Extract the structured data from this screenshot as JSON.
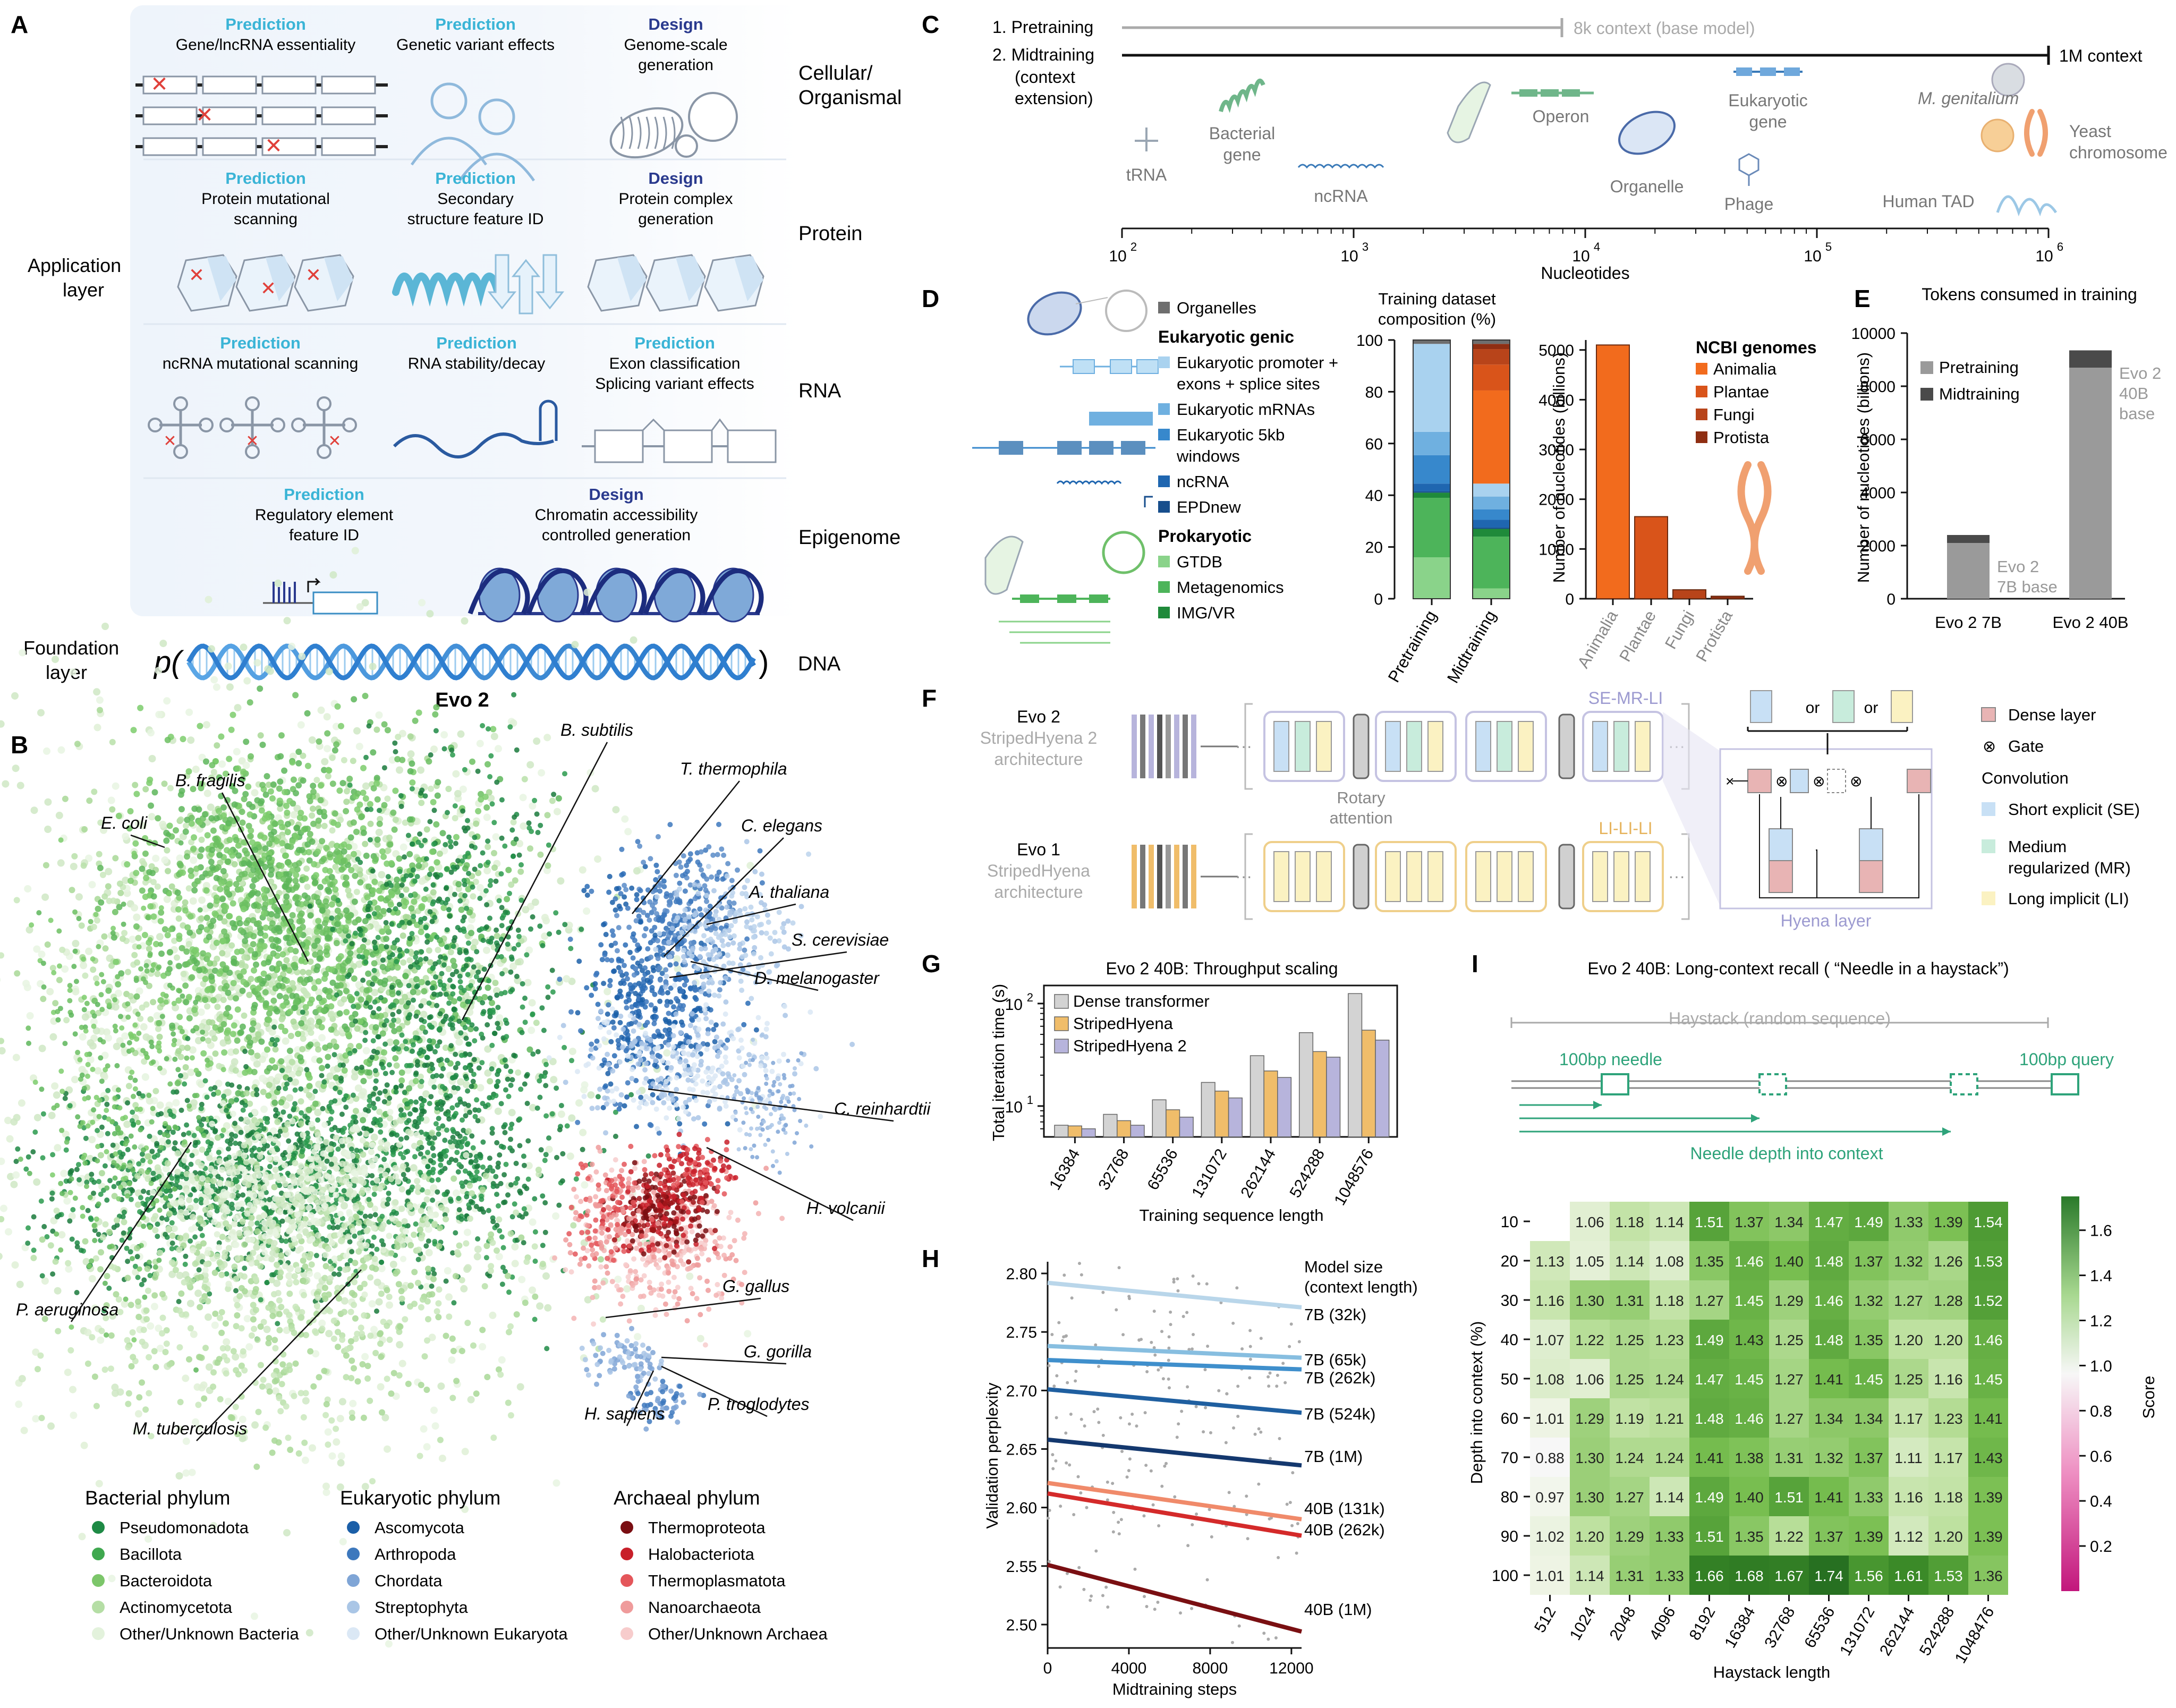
{
  "panelA": {
    "letter": "A",
    "sections": [
      {
        "label": "Cellular/ Organismal",
        "label_lines": [
          "Cellular/",
          "Organismal"
        ],
        "items": [
          {
            "kind": "Prediction",
            "lines": [
              "Gene/lncRNA essentiality"
            ]
          },
          {
            "kind": "Prediction",
            "lines": [
              "Genetic variant effects"
            ]
          },
          {
            "kind": "Design",
            "lines": [
              "Genome-scale",
              "generation"
            ]
          }
        ]
      },
      {
        "label": "Protein",
        "label_lines": [
          "Protein"
        ],
        "items": [
          {
            "kind": "Prediction",
            "lines": [
              "Protein mutational",
              "scanning"
            ]
          },
          {
            "kind": "Prediction",
            "lines": [
              "Secondary",
              "structure feature ID"
            ]
          },
          {
            "kind": "Design",
            "lines": [
              "Protein complex",
              "generation"
            ]
          }
        ]
      },
      {
        "label": "RNA",
        "label_lines": [
          "RNA"
        ],
        "items": [
          {
            "kind": "Prediction",
            "lines": [
              "ncRNA mutational scanning"
            ]
          },
          {
            "kind": "Prediction",
            "lines": [
              "RNA stability/decay"
            ]
          },
          {
            "kind": "Prediction",
            "lines": [
              "Exon classification",
              "Splicing variant effects"
            ]
          }
        ]
      },
      {
        "label": "Epigenome",
        "label_lines": [
          "Epigenome"
        ],
        "items": [
          {
            "kind": "Prediction",
            "lines": [
              "Regulatory element",
              "feature ID"
            ]
          },
          {
            "kind": "Design",
            "lines": [
              "Chromatin accessibility",
              "controlled generation"
            ]
          }
        ]
      }
    ],
    "app_layer": [
      "Application",
      "layer"
    ],
    "foundation_layer": [
      "Foundation",
      "layer"
    ],
    "p_open": "p(",
    "p_close": ")",
    "dna_label": "DNA",
    "model_name": "Evo 2"
  },
  "panelB": {
    "letter": "B",
    "species": [
      "E. coli",
      "B. fragilis",
      "B. subtilis",
      "T. thermophila",
      "C. elegans",
      "A. thaliana",
      "S. cerevisiae",
      "D. melanogaster",
      "C. reinhardtii",
      "H. volcanii",
      "P. aeruginosa",
      "M. tuberculosis",
      "G. gallus",
      "G. gorilla",
      "H. sapiens",
      "P. troglodytes"
    ],
    "legends": [
      {
        "title": "Bacterial phylum",
        "entries": [
          {
            "name": "Pseudomonadota",
            "color": "#1e8a45"
          },
          {
            "name": "Bacillota",
            "color": "#3fa84f"
          },
          {
            "name": "Bacteroidota",
            "color": "#7cc66a"
          },
          {
            "name": "Actinomycetota",
            "color": "#b5dea5"
          },
          {
            "name": "Other/Unknown Bacteria",
            "color": "#e3f2dc"
          }
        ]
      },
      {
        "title": "Eukaryotic phylum",
        "entries": [
          {
            "name": "Ascomycota",
            "color": "#1b5fa8"
          },
          {
            "name": "Arthropoda",
            "color": "#3d78bd"
          },
          {
            "name": "Chordata",
            "color": "#7fa5d6"
          },
          {
            "name": "Streptophyta",
            "color": "#aac6e6"
          },
          {
            "name": "Other/Unknown Eukaryota",
            "color": "#dbe8f5"
          }
        ]
      },
      {
        "title": "Archaeal phylum",
        "entries": [
          {
            "name": "Thermoproteota",
            "color": "#7a0e12"
          },
          {
            "name": "Halobacteriota",
            "color": "#c8202a"
          },
          {
            "name": "Thermoplasmatota",
            "color": "#e4565a"
          },
          {
            "name": "Nanoarchaeota",
            "color": "#ef9b9b"
          },
          {
            "name": "Other/Unknown Archaea",
            "color": "#f7cccc"
          }
        ]
      }
    ]
  },
  "panelC": {
    "letter": "C",
    "row1": {
      "label": "1. Pretraining",
      "caption": "8k context (base model)"
    },
    "row2": {
      "label_lines": [
        "2. Midtraining",
        "(context",
        "extension)"
      ],
      "caption": "1M context"
    },
    "items": [
      "tRNA",
      "Bacterial gene",
      "ncRNA",
      "Operon",
      "Organelle",
      "Eukaryotic gene",
      "Phage",
      "M. genitalium",
      "Yeast chromosome",
      "Human TAD"
    ],
    "axis_label": "Nucleotides",
    "ticks": [
      {
        "base": "10",
        "exp": "2"
      },
      {
        "base": "10",
        "exp": "3"
      },
      {
        "base": "10",
        "exp": "4"
      },
      {
        "base": "10",
        "exp": "5"
      },
      {
        "base": "10",
        "exp": "6"
      }
    ]
  },
  "panelD": {
    "letter": "D",
    "legend_groups": [
      {
        "title": "",
        "entries": [
          {
            "name": "Organelles",
            "color": "#6e6e6e"
          }
        ]
      },
      {
        "title": "Eukaryotic genic",
        "entries": [
          {
            "name": "Eukaryotic promoter + exons + splice sites",
            "lines": [
              "Eukaryotic promoter +",
              "exons + splice sites"
            ],
            "color": "#a9d2ef"
          },
          {
            "name": "Eukaryotic mRNAs",
            "lines": [
              "Eukaryotic mRNAs"
            ],
            "color": "#6fb0e0"
          },
          {
            "name": "Eukaryotic 5kb windows",
            "lines": [
              "Eukaryotic 5kb",
              "windows"
            ],
            "color": "#3788cc"
          },
          {
            "name": "ncRNA",
            "lines": [
              "ncRNA"
            ],
            "color": "#1f66b0"
          },
          {
            "name": "EPDnew",
            "lines": [
              "EPDnew"
            ],
            "color": "#174e8c"
          }
        ]
      },
      {
        "title": "Prokaryotic",
        "entries": [
          {
            "name": "GTDB",
            "lines": [
              "GTDB"
            ],
            "color": "#8ad38a"
          },
          {
            "name": "Metagenomics",
            "lines": [
              "Metagenomics"
            ],
            "color": "#4db45a"
          },
          {
            "name": "IMG/VR",
            "lines": [
              "IMG/VR"
            ],
            "color": "#1f8a3a"
          }
        ]
      }
    ]
  },
  "panelE": {
    "letter": "E"
  },
  "panelF": {
    "letter": "F",
    "evo2": [
      "Evo 2",
      "StripedHyena 2",
      "architecture"
    ],
    "evo1": [
      "Evo 1",
      "StripedHyena",
      "architecture"
    ],
    "rotary": [
      "Rotary",
      "attention"
    ],
    "se_mr_li": "SE-MR-LI",
    "li_li_li": "LI-LI-LI",
    "or": "or",
    "hyena_layer": "Hyena layer",
    "legend": {
      "dense": "Dense layer",
      "gate": "Gate",
      "gate_symbol": "⊗",
      "convolution": "Convolution",
      "se": "Short explicit (SE)",
      "mr": [
        "Medium",
        "regularized (MR)"
      ],
      "li": "Long implicit (LI)"
    }
  },
  "panelG": {
    "letter": "G"
  },
  "panelH": {
    "letter": "H"
  },
  "panelI": {
    "letter": "I",
    "diagram": {
      "haystack": "Haystack (random sequence)",
      "needle": "100bp needle",
      "query": "100bp query",
      "depth": "Needle depth into context"
    }
  },
  "chart_data": [
    {
      "id": "D1",
      "type": "bar",
      "stacked": true,
      "title": "Training dataset composition (%)",
      "title_lines": [
        "Training dataset",
        "composition (%)"
      ],
      "categories": [
        "Pretraining",
        "Midtraining"
      ],
      "ylim": [
        0,
        100
      ],
      "yticks": [
        0,
        20,
        40,
        60,
        80,
        100
      ],
      "series": [
        {
          "name": "GTDB",
          "color": "#8ad38a",
          "values": [
            16,
            4
          ]
        },
        {
          "name": "Metagenomics",
          "color": "#4db45a",
          "values": [
            23,
            20
          ]
        },
        {
          "name": "IMG/VR",
          "color": "#1f8a3a",
          "values": [
            2,
            3
          ]
        },
        {
          "name": "EPDnew",
          "color": "#174e8c",
          "values": [
            0.5,
            0.5
          ]
        },
        {
          "name": "ncRNA",
          "color": "#1f66b0",
          "values": [
            3,
            3
          ]
        },
        {
          "name": "Eukaryotic 5kb windows",
          "color": "#3788cc",
          "values": [
            11,
            4
          ]
        },
        {
          "name": "Eukaryotic mRNAs",
          "color": "#6fb0e0",
          "values": [
            9,
            5
          ]
        },
        {
          "name": "Eukaryotic promoter + exons + splice sites",
          "color": "#a9d2ef",
          "values": [
            34,
            5
          ]
        },
        {
          "name": "Animalia",
          "color": "#f26b1d",
          "values": [
            0,
            36
          ]
        },
        {
          "name": "Plantae",
          "color": "#d9541a",
          "values": [
            0,
            10
          ]
        },
        {
          "name": "Fungi",
          "color": "#b8441a",
          "values": [
            0,
            6
          ]
        },
        {
          "name": "Protista",
          "color": "#8f2e12",
          "values": [
            0,
            2
          ]
        },
        {
          "name": "Organelles",
          "color": "#6e6e6e",
          "values": [
            1.5,
            1.5
          ]
        }
      ]
    },
    {
      "id": "D2",
      "type": "bar",
      "ylabel": "Number of nucleotides (billions)",
      "legend_title": "NCBI genomes",
      "categories": [
        "Animalia",
        "Plantae",
        "Fungi",
        "Protista"
      ],
      "values": [
        5100,
        1650,
        180,
        50
      ],
      "colors": [
        "#f26b1d",
        "#d9541a",
        "#b8441a",
        "#8f2e12"
      ],
      "ylim": [
        0,
        5200
      ],
      "yticks": [
        0,
        1000,
        2000,
        3000,
        4000,
        5000
      ]
    },
    {
      "id": "E",
      "type": "bar",
      "stacked": true,
      "title": "Tokens consumed in training",
      "ylabel": "Number of nucleotides (billions)",
      "categories": [
        "Evo 2 7B",
        "Evo 2 40B"
      ],
      "series": [
        {
          "name": "Pretraining",
          "color": "#9a9a9a",
          "values": [
            2100,
            8700
          ]
        },
        {
          "name": "Midtraining",
          "color": "#4a4a4a",
          "values": [
            300,
            650
          ]
        }
      ],
      "annotations": [
        [
          "Evo 2",
          "7B base"
        ],
        [
          "Evo 2",
          "40B",
          "base"
        ]
      ],
      "ylim": [
        0,
        10000
      ],
      "yticks": [
        0,
        2000,
        4000,
        6000,
        8000,
        10000
      ]
    },
    {
      "id": "G",
      "type": "bar",
      "title": "Evo 2 40B: Throughput scaling",
      "xlabel": "Training sequence length",
      "ylabel": "Total iteration time (s)",
      "yscale": "log",
      "categories": [
        "16384",
        "32768",
        "65536",
        "131072",
        "262144",
        "524288",
        "1048576"
      ],
      "series": [
        {
          "name": "Dense transformer",
          "color": "#d3d3d3",
          "values": [
            6.5,
            8.3,
            11.5,
            17,
            31,
            52,
            125
          ]
        },
        {
          "name": "StripedHyena",
          "color": "#f0bd6a",
          "values": [
            6.4,
            7.2,
            9.2,
            14,
            22,
            34,
            55
          ]
        },
        {
          "name": "StripedHyena 2",
          "color": "#b7b4dc",
          "values": [
            6,
            6.5,
            7.8,
            12,
            19,
            30,
            44
          ]
        }
      ],
      "ylim": [
        5,
        150
      ]
    },
    {
      "id": "H",
      "type": "line",
      "xlabel": "Midtraining steps",
      "ylabel": "Validation perplexity",
      "legend_title": [
        "Model size",
        "(context length)"
      ],
      "xlim": [
        0,
        12500
      ],
      "ylim": [
        2.48,
        2.81
      ],
      "xticks": [
        0,
        4000,
        8000,
        12000
      ],
      "yticks": [
        2.5,
        2.55,
        2.6,
        2.65,
        2.7,
        2.75,
        2.8
      ],
      "series": [
        {
          "name": "7B (32k)",
          "color": "#b9d6ea",
          "y_start": 2.792,
          "y_end": 2.771
        },
        {
          "name": "7B (65k)",
          "color": "#87bee0",
          "y_start": 2.738,
          "y_end": 2.728
        },
        {
          "name": "7B (262k)",
          "color": "#3f8fcc",
          "y_start": 2.726,
          "y_end": 2.718
        },
        {
          "name": "7B (524k)",
          "color": "#1f5fa0",
          "y_start": 2.701,
          "y_end": 2.681
        },
        {
          "name": "7B (1M)",
          "color": "#14386e",
          "y_start": 2.658,
          "y_end": 2.636
        },
        {
          "name": "40B (131k)",
          "color": "#f08a6a",
          "y_start": 2.621,
          "y_end": 2.59
        },
        {
          "name": "40B (262k)",
          "color": "#d42a2a",
          "y_start": 2.612,
          "y_end": 2.576
        },
        {
          "name": "40B (1M)",
          "color": "#7a0f12",
          "y_start": 2.551,
          "y_end": 2.494
        }
      ]
    },
    {
      "id": "I",
      "type": "heatmap",
      "title": "Evo 2 40B: Long-context recall ( “Needle in a haystack”)",
      "xlabel": "Haystack length",
      "ylabel": "Depth into context (%)",
      "colorbar_label": "Score",
      "colorbar_ticks": [
        0.2,
        0.4,
        0.6,
        0.8,
        1.0,
        1.2,
        1.4,
        1.6
      ],
      "x": [
        "512",
        "1024",
        "2048",
        "4096",
        "8192",
        "16384",
        "32768",
        "65536",
        "131072",
        "262144",
        "524288",
        "1048476"
      ],
      "y": [
        "10",
        "20",
        "30",
        "40",
        "50",
        "60",
        "70",
        "80",
        "90",
        "100"
      ],
      "values": [
        [
          null,
          1.06,
          1.18,
          1.14,
          1.51,
          1.37,
          1.34,
          1.47,
          1.49,
          1.33,
          1.39,
          1.54
        ],
        [
          1.13,
          1.05,
          1.14,
          1.08,
          1.35,
          1.46,
          1.4,
          1.48,
          1.37,
          1.32,
          1.26,
          1.53
        ],
        [
          1.16,
          1.3,
          1.31,
          1.18,
          1.27,
          1.45,
          1.29,
          1.46,
          1.32,
          1.27,
          1.28,
          1.52
        ],
        [
          1.07,
          1.22,
          1.25,
          1.23,
          1.49,
          1.43,
          1.25,
          1.48,
          1.35,
          1.2,
          1.2,
          1.46
        ],
        [
          1.08,
          1.06,
          1.25,
          1.24,
          1.47,
          1.45,
          1.27,
          1.41,
          1.45,
          1.25,
          1.16,
          1.45
        ],
        [
          1.01,
          1.29,
          1.19,
          1.21,
          1.48,
          1.46,
          1.27,
          1.34,
          1.34,
          1.17,
          1.23,
          1.41
        ],
        [
          0.88,
          1.3,
          1.24,
          1.24,
          1.41,
          1.38,
          1.31,
          1.32,
          1.37,
          1.11,
          1.17,
          1.43
        ],
        [
          0.97,
          1.3,
          1.27,
          1.14,
          1.49,
          1.4,
          1.51,
          1.41,
          1.33,
          1.16,
          1.18,
          1.39
        ],
        [
          1.02,
          1.2,
          1.29,
          1.33,
          1.51,
          1.35,
          1.22,
          1.37,
          1.39,
          1.12,
          1.2,
          1.39
        ],
        [
          1.01,
          1.14,
          1.31,
          1.33,
          1.66,
          1.68,
          1.67,
          1.74,
          1.56,
          1.61,
          1.53,
          1.36
        ]
      ]
    }
  ]
}
